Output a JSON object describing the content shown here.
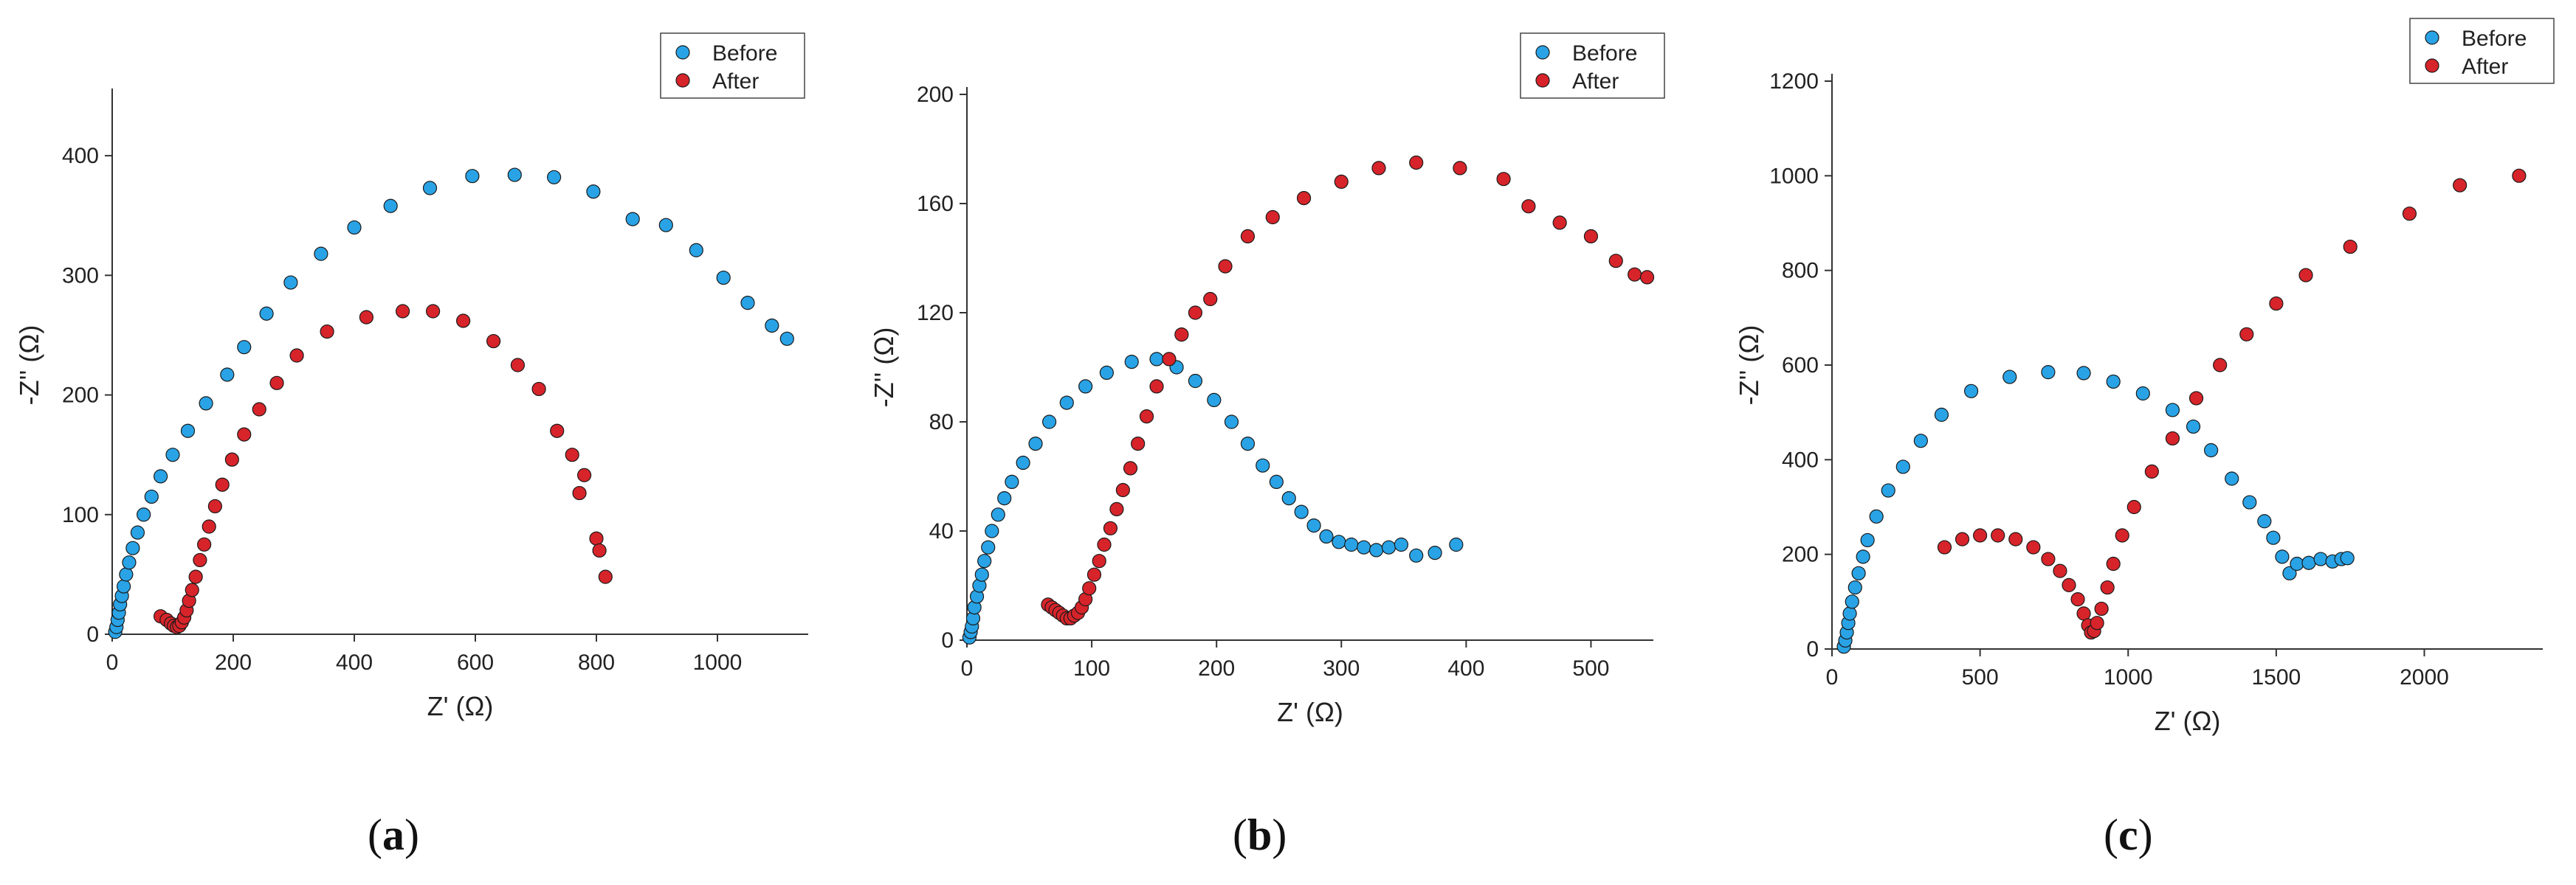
{
  "colors": {
    "before": "#29a3e6",
    "after": "#d6242a",
    "axis": "#333333",
    "edge": "#1a1a1a"
  },
  "chart_data": [
    {
      "id": "a",
      "panel_label": "a",
      "type": "scatter",
      "xlabel": "Z' (Ω)",
      "ylabel": "-Z'' (Ω)",
      "xlim": [
        0,
        1150
      ],
      "ylim": [
        0,
        450
      ],
      "xticks": [
        0,
        200,
        400,
        600,
        800,
        1000
      ],
      "yticks": [
        0,
        100,
        200,
        300,
        400
      ],
      "legend": [
        "Before",
        "After"
      ],
      "legend_position": "top-right",
      "series": [
        {
          "name": "Before",
          "points": [
            [
              5,
              2
            ],
            [
              7,
              6
            ],
            [
              9,
              12
            ],
            [
              11,
              18
            ],
            [
              13,
              25
            ],
            [
              16,
              32
            ],
            [
              19,
              40
            ],
            [
              23,
              50
            ],
            [
              28,
              60
            ],
            [
              34,
              72
            ],
            [
              42,
              85
            ],
            [
              52,
              100
            ],
            [
              65,
              115
            ],
            [
              80,
              132
            ],
            [
              100,
              150
            ],
            [
              125,
              170
            ],
            [
              155,
              193
            ],
            [
              190,
              217
            ],
            [
              218,
              240
            ],
            [
              255,
              268
            ],
            [
              295,
              294
            ],
            [
              345,
              318
            ],
            [
              400,
              340
            ],
            [
              460,
              358
            ],
            [
              525,
              373
            ],
            [
              595,
              383
            ],
            [
              665,
              384
            ],
            [
              730,
              382
            ],
            [
              795,
              370
            ],
            [
              860,
              347
            ],
            [
              915,
              342
            ],
            [
              965,
              321
            ],
            [
              1010,
              298
            ],
            [
              1050,
              277
            ],
            [
              1090,
              258
            ],
            [
              1115,
              247
            ]
          ]
        },
        {
          "name": "After",
          "points": [
            [
              80,
              15
            ],
            [
              90,
              12
            ],
            [
              97,
              9
            ],
            [
              102,
              7
            ],
            [
              107,
              6
            ],
            [
              111,
              7
            ],
            [
              115,
              10
            ],
            [
              119,
              14
            ],
            [
              123,
              20
            ],
            [
              127,
              28
            ],
            [
              132,
              37
            ],
            [
              138,
              48
            ],
            [
              145,
              62
            ],
            [
              152,
              75
            ],
            [
              160,
              90
            ],
            [
              170,
              107
            ],
            [
              182,
              125
            ],
            [
              198,
              146
            ],
            [
              218,
              167
            ],
            [
              243,
              188
            ],
            [
              272,
              210
            ],
            [
              305,
              233
            ],
            [
              355,
              253
            ],
            [
              420,
              265
            ],
            [
              480,
              270
            ],
            [
              530,
              270
            ],
            [
              580,
              262
            ],
            [
              630,
              245
            ],
            [
              670,
              225
            ],
            [
              705,
              205
            ],
            [
              735,
              170
            ],
            [
              760,
              150
            ],
            [
              780,
              133
            ],
            [
              772,
              118
            ],
            [
              800,
              80
            ],
            [
              805,
              70
            ],
            [
              815,
              48
            ]
          ]
        }
      ]
    },
    {
      "id": "b",
      "panel_label": "b",
      "type": "scatter",
      "xlabel": "Z' (Ω)",
      "ylabel": "-Z'' (Ω)",
      "xlim": [
        0,
        550
      ],
      "ylim": [
        0,
        200
      ],
      "xticks": [
        0,
        100,
        200,
        300,
        400,
        500
      ],
      "yticks": [
        0,
        40,
        80,
        120,
        160,
        200
      ],
      "legend": [
        "Before",
        "After"
      ],
      "legend_position": "top-right",
      "series": [
        {
          "name": "Before",
          "points": [
            [
              2,
              1
            ],
            [
              3,
              3
            ],
            [
              4,
              5
            ],
            [
              5,
              8
            ],
            [
              6,
              12
            ],
            [
              8,
              16
            ],
            [
              10,
              20
            ],
            [
              12,
              24
            ],
            [
              14,
              29
            ],
            [
              17,
              34
            ],
            [
              20,
              40
            ],
            [
              25,
              46
            ],
            [
              30,
              52
            ],
            [
              36,
              58
            ],
            [
              45,
              65
            ],
            [
              55,
              72
            ],
            [
              66,
              80
            ],
            [
              80,
              87
            ],
            [
              95,
              93
            ],
            [
              112,
              98
            ],
            [
              132,
              102
            ],
            [
              152,
              103
            ],
            [
              168,
              100
            ],
            [
              183,
              95
            ],
            [
              198,
              88
            ],
            [
              212,
              80
            ],
            [
              225,
              72
            ],
            [
              237,
              64
            ],
            [
              248,
              58
            ],
            [
              258,
              52
            ],
            [
              268,
              47
            ],
            [
              278,
              42
            ],
            [
              288,
              38
            ],
            [
              298,
              36
            ],
            [
              308,
              35
            ],
            [
              318,
              34
            ],
            [
              328,
              33
            ],
            [
              338,
              34
            ],
            [
              348,
              35
            ],
            [
              360,
              31
            ],
            [
              375,
              32
            ],
            [
              392,
              35
            ]
          ]
        },
        {
          "name": "After",
          "points": [
            [
              65,
              13
            ],
            [
              68,
              12
            ],
            [
              71,
              11
            ],
            [
              74,
              10
            ],
            [
              77,
              9
            ],
            [
              80,
              8
            ],
            [
              83,
              8
            ],
            [
              86,
              9
            ],
            [
              89,
              10
            ],
            [
              92,
              12
            ],
            [
              95,
              15
            ],
            [
              98,
              19
            ],
            [
              102,
              24
            ],
            [
              106,
              29
            ],
            [
              110,
              35
            ],
            [
              115,
              41
            ],
            [
              120,
              48
            ],
            [
              125,
              55
            ],
            [
              131,
              63
            ],
            [
              137,
              72
            ],
            [
              144,
              82
            ],
            [
              152,
              93
            ],
            [
              162,
              103
            ],
            [
              172,
              112
            ],
            [
              183,
              120
            ],
            [
              195,
              125
            ],
            [
              207,
              137
            ],
            [
              225,
              148
            ],
            [
              245,
              155
            ],
            [
              270,
              162
            ],
            [
              300,
              168
            ],
            [
              330,
              173
            ],
            [
              360,
              175
            ],
            [
              395,
              173
            ],
            [
              430,
              169
            ],
            [
              450,
              159
            ],
            [
              475,
              153
            ],
            [
              500,
              148
            ],
            [
              520,
              139
            ],
            [
              535,
              134
            ],
            [
              545,
              133
            ]
          ]
        }
      ]
    },
    {
      "id": "c",
      "panel_label": "c",
      "type": "scatter",
      "xlabel": "Z' (Ω)",
      "ylabel": "-Z'' (Ω)",
      "xlim": [
        0,
        2400
      ],
      "ylim": [
        0,
        1200
      ],
      "xticks": [
        0,
        500,
        1000,
        1500,
        2000
      ],
      "yticks": [
        0,
        200,
        400,
        600,
        800,
        1000,
        1200
      ],
      "legend": [
        "Before",
        "After"
      ],
      "legend_position": "top-right",
      "series": [
        {
          "name": "Before",
          "points": [
            [
              40,
              5
            ],
            [
              45,
              18
            ],
            [
              50,
              35
            ],
            [
              55,
              55
            ],
            [
              60,
              75
            ],
            [
              68,
              100
            ],
            [
              78,
              130
            ],
            [
              90,
              160
            ],
            [
              105,
              195
            ],
            [
              120,
              230
            ],
            [
              150,
              280
            ],
            [
              190,
              335
            ],
            [
              240,
              385
            ],
            [
              300,
              440
            ],
            [
              370,
              495
            ],
            [
              470,
              545
            ],
            [
              600,
              575
            ],
            [
              730,
              585
            ],
            [
              850,
              583
            ],
            [
              950,
              565
            ],
            [
              1050,
              540
            ],
            [
              1150,
              505
            ],
            [
              1220,
              470
            ],
            [
              1280,
              420
            ],
            [
              1350,
              360
            ],
            [
              1410,
              310
            ],
            [
              1460,
              270
            ],
            [
              1490,
              235
            ],
            [
              1520,
              195
            ],
            [
              1545,
              160
            ],
            [
              1570,
              180
            ],
            [
              1610,
              182
            ],
            [
              1650,
              190
            ],
            [
              1690,
              185
            ],
            [
              1720,
              190
            ],
            [
              1740,
              192
            ]
          ]
        },
        {
          "name": "After",
          "points": [
            [
              380,
              215
            ],
            [
              440,
              232
            ],
            [
              500,
              240
            ],
            [
              560,
              240
            ],
            [
              620,
              232
            ],
            [
              680,
              215
            ],
            [
              730,
              190
            ],
            [
              770,
              165
            ],
            [
              800,
              135
            ],
            [
              830,
              105
            ],
            [
              850,
              75
            ],
            [
              865,
              50
            ],
            [
              875,
              35
            ],
            [
              885,
              38
            ],
            [
              895,
              55
            ],
            [
              910,
              85
            ],
            [
              930,
              130
            ],
            [
              950,
              180
            ],
            [
              980,
              240
            ],
            [
              1020,
              300
            ],
            [
              1080,
              375
            ],
            [
              1150,
              445
            ],
            [
              1230,
              530
            ],
            [
              1310,
              600
            ],
            [
              1400,
              665
            ],
            [
              1500,
              730
            ],
            [
              1600,
              790
            ],
            [
              1750,
              850
            ],
            [
              1950,
              920
            ],
            [
              2120,
              980
            ],
            [
              2320,
              1000
            ]
          ]
        }
      ]
    }
  ]
}
